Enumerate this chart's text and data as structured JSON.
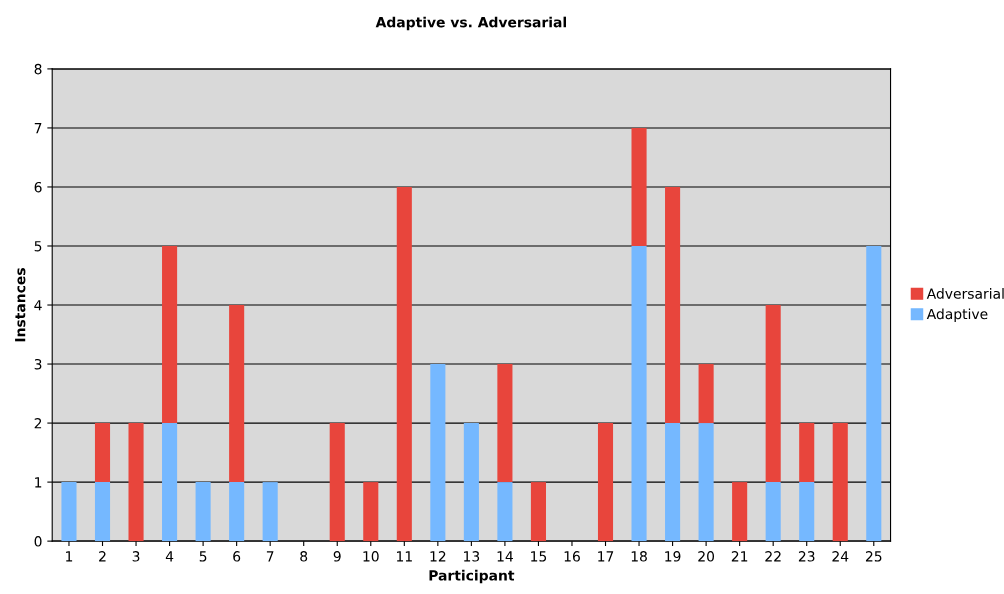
{
  "chart_data": {
    "type": "bar",
    "title": "Adaptive vs. Adversarial",
    "xlabel": "Participant",
    "ylabel": "Instances",
    "categories": [
      "1",
      "2",
      "3",
      "4",
      "5",
      "6",
      "7",
      "8",
      "9",
      "10",
      "11",
      "12",
      "13",
      "14",
      "15",
      "16",
      "17",
      "18",
      "19",
      "20",
      "21",
      "22",
      "23",
      "24",
      "25"
    ],
    "stacked": true,
    "series": [
      {
        "name": "Adaptive",
        "color": "#75b8ff",
        "values": [
          1,
          1,
          0,
          2,
          1,
          1,
          1,
          0,
          0,
          0,
          0,
          3,
          2,
          1,
          0,
          0,
          0,
          5,
          2,
          2,
          0,
          1,
          1,
          0,
          5
        ]
      },
      {
        "name": "Adversarial",
        "color": "#e8453c",
        "values": [
          0,
          1,
          2,
          3,
          0,
          3,
          0,
          0,
          2,
          1,
          6,
          0,
          0,
          2,
          1,
          0,
          2,
          2,
          4,
          1,
          1,
          3,
          1,
          2,
          0
        ]
      }
    ],
    "ylim": [
      0,
      8
    ],
    "yticks": [
      0,
      1,
      2,
      3,
      4,
      5,
      6,
      7,
      8
    ],
    "grid": "y",
    "legend": "right"
  }
}
